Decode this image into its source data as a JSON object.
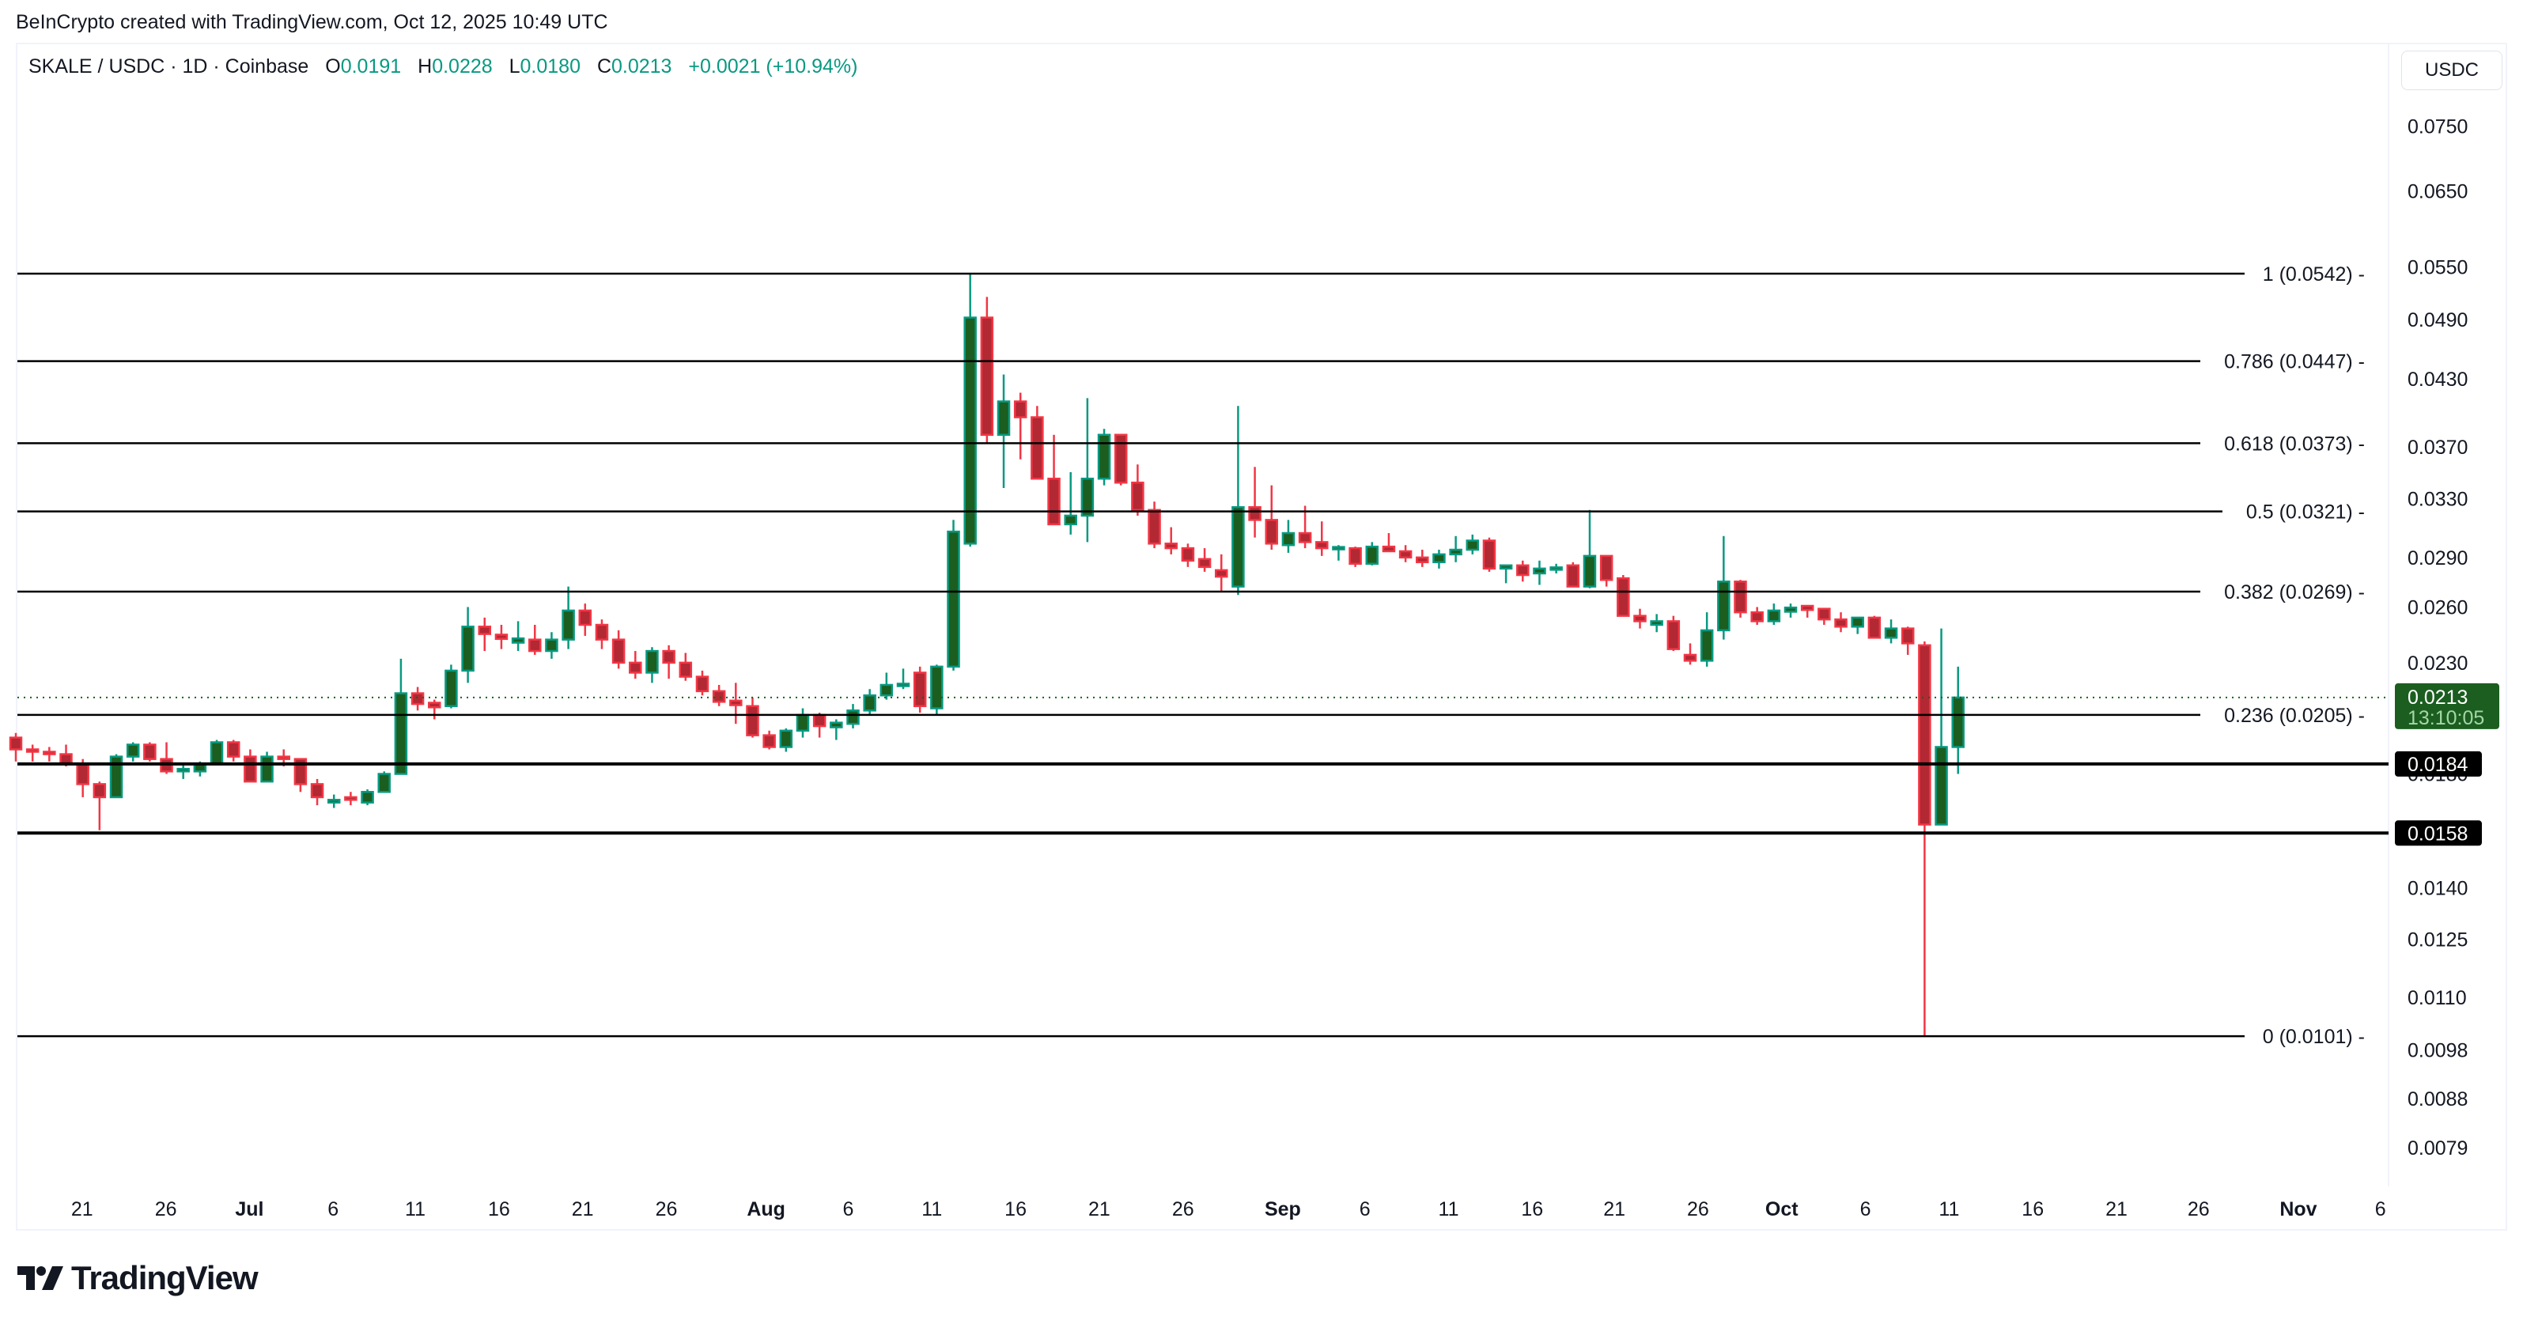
{
  "header": {
    "watermark": "BeInCrypto created with TradingView.com, Oct 12, 2025 10:49 UTC"
  },
  "legend": {
    "symbol": "SKALE / USDC · 1D · Coinbase",
    "open_label": "O",
    "open": "0.0191",
    "high_label": "H",
    "high": "0.0228",
    "low_label": "L",
    "low": "0.0180",
    "close_label": "C",
    "close": "0.0213",
    "change": "+0.0021 (+10.94%)"
  },
  "currency_button": "USDC",
  "branding": {
    "logo_text": "TradingView"
  },
  "colors": {
    "up_fill": "#1b5e20",
    "up_border": "#089981",
    "down_fill": "#b22833",
    "down_border": "#f23645",
    "line": "#000000",
    "last_price_bg": "#1b5e20"
  },
  "chart_data": {
    "type": "candlestick",
    "title": "SKALE / USDC · 1D · Coinbase",
    "xlabel": "",
    "ylabel": "USDC",
    "y_scale": "log",
    "ylim": [
      0.0072,
      0.08
    ],
    "y_ticks": [
      "0.0750",
      "0.0650",
      "0.0550",
      "0.0490",
      "0.0430",
      "0.0370",
      "0.0330",
      "0.0290",
      "0.0260",
      "0.0230",
      "0.0180",
      "0.0140",
      "0.0125",
      "0.0110",
      "0.0098",
      "0.0088",
      "0.0079"
    ],
    "x_ticks": [
      "21",
      "26",
      "Jul",
      "6",
      "11",
      "16",
      "21",
      "26",
      "Aug",
      "6",
      "11",
      "16",
      "21",
      "26",
      "Sep",
      "6",
      "11",
      "16",
      "21",
      "26",
      "Oct",
      "6",
      "11",
      "16",
      "21",
      "26",
      "Nov",
      "6"
    ],
    "x_ticks_bold": [
      "Jul",
      "Aug",
      "Sep",
      "Oct",
      "Nov"
    ],
    "first_candle_date": "2025-06-17",
    "fib_levels": [
      {
        "ratio": "1",
        "price": 0.0542,
        "label": "1 (0.0542)"
      },
      {
        "ratio": "0.786",
        "price": 0.0447,
        "label": "0.786 (0.0447)"
      },
      {
        "ratio": "0.618",
        "price": 0.0373,
        "label": "0.618 (0.0373)"
      },
      {
        "ratio": "0.5",
        "price": 0.0321,
        "label": "0.5 (0.0321)"
      },
      {
        "ratio": "0.382",
        "price": 0.0269,
        "label": "0.382 (0.0269)"
      },
      {
        "ratio": "0.236",
        "price": 0.0205,
        "label": "0.236 (0.0205)"
      },
      {
        "ratio": "0",
        "price": 0.0101,
        "label": "0 (0.0101)"
      }
    ],
    "horizontal_lines": [
      {
        "price": 0.0184,
        "label": "0.0184"
      },
      {
        "price": 0.0158,
        "label": "0.0158"
      }
    ],
    "last_price": {
      "price": 0.0213,
      "label": "0.0213",
      "countdown": "13:10:05"
    },
    "candles": [
      [
        0.0195,
        0.0197,
        0.0185,
        0.019
      ],
      [
        0.019,
        0.0192,
        0.0185,
        0.0189
      ],
      [
        0.0189,
        0.0191,
        0.0185,
        0.0188
      ],
      [
        0.0188,
        0.0192,
        0.0183,
        0.0184
      ],
      [
        0.0184,
        0.0186,
        0.0171,
        0.0176
      ],
      [
        0.0176,
        0.0177,
        0.0159,
        0.0171
      ],
      [
        0.0171,
        0.0188,
        0.0171,
        0.0187
      ],
      [
        0.0187,
        0.0193,
        0.0185,
        0.0192
      ],
      [
        0.0192,
        0.0193,
        0.0185,
        0.0186
      ],
      [
        0.0186,
        0.0193,
        0.018,
        0.0181
      ],
      [
        0.0181,
        0.0184,
        0.0178,
        0.0182
      ],
      [
        0.0181,
        0.0185,
        0.0179,
        0.0184
      ],
      [
        0.0184,
        0.0194,
        0.0184,
        0.0193
      ],
      [
        0.0193,
        0.0194,
        0.0185,
        0.0187
      ],
      [
        0.0187,
        0.019,
        0.0178,
        0.0177
      ],
      [
        0.0177,
        0.0189,
        0.0177,
        0.0187
      ],
      [
        0.0187,
        0.019,
        0.0183,
        0.0186
      ],
      [
        0.0186,
        0.0186,
        0.0173,
        0.0176
      ],
      [
        0.0176,
        0.0178,
        0.0168,
        0.0171
      ],
      [
        0.0169,
        0.0172,
        0.0167,
        0.017
      ],
      [
        0.0171,
        0.0173,
        0.0168,
        0.017
      ],
      [
        0.0169,
        0.0174,
        0.0168,
        0.0173
      ],
      [
        0.0173,
        0.0181,
        0.0173,
        0.018
      ],
      [
        0.018,
        0.0232,
        0.018,
        0.0215
      ],
      [
        0.0215,
        0.0218,
        0.0207,
        0.021
      ],
      [
        0.021,
        0.0212,
        0.0203,
        0.0209
      ],
      [
        0.0209,
        0.0229,
        0.0208,
        0.0226
      ],
      [
        0.0226,
        0.026,
        0.022,
        0.0249
      ],
      [
        0.0249,
        0.0254,
        0.0236,
        0.0245
      ],
      [
        0.0244,
        0.025,
        0.0237,
        0.0243
      ],
      [
        0.0241,
        0.0252,
        0.0236,
        0.0242
      ],
      [
        0.0242,
        0.025,
        0.0234,
        0.0236
      ],
      [
        0.0236,
        0.0246,
        0.0232,
        0.0242
      ],
      [
        0.0242,
        0.0272,
        0.0237,
        0.0258
      ],
      [
        0.0258,
        0.0262,
        0.0244,
        0.025
      ],
      [
        0.025,
        0.0253,
        0.0237,
        0.0242
      ],
      [
        0.0242,
        0.0247,
        0.0227,
        0.023
      ],
      [
        0.023,
        0.0236,
        0.0222,
        0.0225
      ],
      [
        0.0225,
        0.0238,
        0.022,
        0.0236
      ],
      [
        0.0236,
        0.0239,
        0.0222,
        0.023
      ],
      [
        0.023,
        0.0235,
        0.0221,
        0.0223
      ],
      [
        0.0223,
        0.0226,
        0.0214,
        0.0216
      ],
      [
        0.0216,
        0.0219,
        0.0209,
        0.0211
      ],
      [
        0.0211,
        0.022,
        0.0201,
        0.021
      ],
      [
        0.0209,
        0.0213,
        0.0195,
        0.0196
      ],
      [
        0.0196,
        0.0198,
        0.019,
        0.0191
      ],
      [
        0.0191,
        0.0199,
        0.0189,
        0.0198
      ],
      [
        0.0198,
        0.0208,
        0.0195,
        0.0205
      ],
      [
        0.0205,
        0.0206,
        0.0195,
        0.02
      ],
      [
        0.02,
        0.0203,
        0.0194,
        0.0201
      ],
      [
        0.0201,
        0.021,
        0.0199,
        0.0207
      ],
      [
        0.0207,
        0.0217,
        0.0205,
        0.0214
      ],
      [
        0.0214,
        0.0225,
        0.0212,
        0.0219
      ],
      [
        0.0219,
        0.0227,
        0.0217,
        0.0219
      ],
      [
        0.0225,
        0.0228,
        0.0206,
        0.0209
      ],
      [
        0.0208,
        0.0229,
        0.0205,
        0.0228
      ],
      [
        0.0228,
        0.0315,
        0.0226,
        0.0307
      ],
      [
        0.0299,
        0.0542,
        0.0297,
        0.0492
      ],
      [
        0.0492,
        0.0515,
        0.0373,
        0.038
      ],
      [
        0.038,
        0.0434,
        0.0338,
        0.0409
      ],
      [
        0.0409,
        0.0417,
        0.036,
        0.0395
      ],
      [
        0.0395,
        0.0405,
        0.0357,
        0.0345
      ],
      [
        0.0345,
        0.038,
        0.0332,
        0.0312
      ],
      [
        0.0312,
        0.035,
        0.0305,
        0.0318
      ],
      [
        0.0318,
        0.0412,
        0.03,
        0.0345
      ],
      [
        0.0345,
        0.0385,
        0.034,
        0.038
      ],
      [
        0.038,
        0.038,
        0.034,
        0.0342
      ],
      [
        0.0342,
        0.0356,
        0.0318,
        0.0322
      ],
      [
        0.0322,
        0.0328,
        0.0296,
        0.0299
      ],
      [
        0.0299,
        0.031,
        0.0292,
        0.0296
      ],
      [
        0.0296,
        0.0299,
        0.0284,
        0.0288
      ],
      [
        0.0289,
        0.0296,
        0.0281,
        0.0284
      ],
      [
        0.0282,
        0.0292,
        0.0269,
        0.0278
      ],
      [
        0.0272,
        0.0405,
        0.0267,
        0.0324
      ],
      [
        0.0324,
        0.0354,
        0.0303,
        0.0315
      ],
      [
        0.0315,
        0.034,
        0.0295,
        0.0299
      ],
      [
        0.0298,
        0.0315,
        0.0293,
        0.0306
      ],
      [
        0.0306,
        0.0325,
        0.0296,
        0.03
      ],
      [
        0.03,
        0.0314,
        0.0291,
        0.0296
      ],
      [
        0.0296,
        0.0298,
        0.0288,
        0.0296
      ],
      [
        0.0296,
        0.0297,
        0.0284,
        0.0286
      ],
      [
        0.0286,
        0.03,
        0.0285,
        0.0297
      ],
      [
        0.0297,
        0.0306,
        0.0294,
        0.0294
      ],
      [
        0.0294,
        0.0298,
        0.0287,
        0.029
      ],
      [
        0.029,
        0.0295,
        0.0284,
        0.0287
      ],
      [
        0.0287,
        0.0295,
        0.0283,
        0.0292
      ],
      [
        0.0292,
        0.0304,
        0.0287,
        0.0295
      ],
      [
        0.0295,
        0.0305,
        0.0292,
        0.0301
      ],
      [
        0.0301,
        0.0303,
        0.0281,
        0.0283
      ],
      [
        0.0283,
        0.0285,
        0.0274,
        0.0285
      ],
      [
        0.0285,
        0.0288,
        0.0275,
        0.0279
      ],
      [
        0.028,
        0.0288,
        0.0273,
        0.0283
      ],
      [
        0.0283,
        0.0286,
        0.028,
        0.0283
      ],
      [
        0.0285,
        0.0287,
        0.0272,
        0.0272
      ],
      [
        0.0272,
        0.0322,
        0.0271,
        0.0291
      ],
      [
        0.0291,
        0.0291,
        0.0272,
        0.0276
      ],
      [
        0.0277,
        0.0279,
        0.0258,
        0.0255
      ],
      [
        0.0255,
        0.0259,
        0.0248,
        0.0252
      ],
      [
        0.025,
        0.0256,
        0.0246,
        0.0252
      ],
      [
        0.0252,
        0.0255,
        0.0236,
        0.0237
      ],
      [
        0.0234,
        0.024,
        0.0229,
        0.0231
      ],
      [
        0.0231,
        0.0257,
        0.0228,
        0.0247
      ],
      [
        0.0247,
        0.0304,
        0.0242,
        0.0275
      ],
      [
        0.0275,
        0.0276,
        0.0254,
        0.0257
      ],
      [
        0.0257,
        0.026,
        0.025,
        0.0252
      ],
      [
        0.0252,
        0.0262,
        0.025,
        0.0258
      ],
      [
        0.0258,
        0.0262,
        0.0254,
        0.0259
      ],
      [
        0.026,
        0.0261,
        0.0254,
        0.0259
      ],
      [
        0.0259,
        0.0259,
        0.025,
        0.0253
      ],
      [
        0.0253,
        0.0257,
        0.0246,
        0.0249
      ],
      [
        0.0249,
        0.0253,
        0.0245,
        0.0254
      ],
      [
        0.0254,
        0.0255,
        0.0243,
        0.0243
      ],
      [
        0.0243,
        0.0253,
        0.024,
        0.0248
      ],
      [
        0.0248,
        0.0249,
        0.0234,
        0.024
      ],
      [
        0.0239,
        0.0241,
        0.0101,
        0.0161
      ],
      [
        0.0161,
        0.0248,
        0.0161,
        0.0191
      ],
      [
        0.0191,
        0.0228,
        0.018,
        0.0213
      ]
    ]
  }
}
